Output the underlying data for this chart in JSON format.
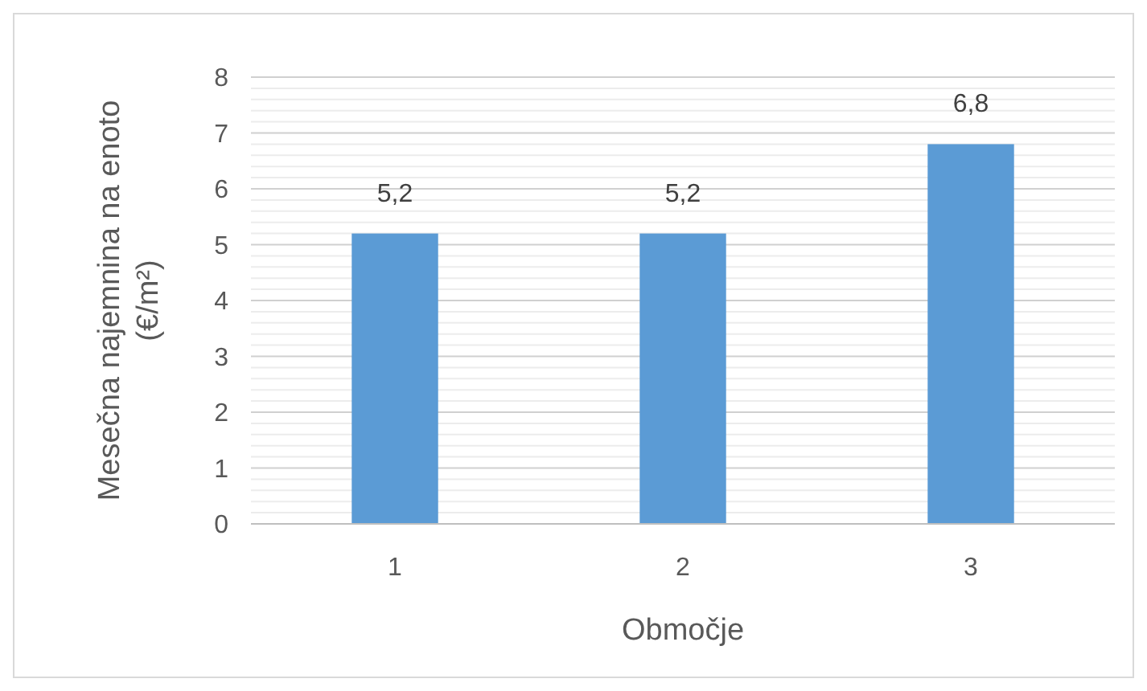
{
  "chart_data": {
    "type": "bar",
    "xlabel": "Območje",
    "ylabel": "Mesečna najemnina na enoto\n(€/m²)",
    "categories": [
      "1",
      "2",
      "3"
    ],
    "values": [
      5.2,
      5.2,
      6.8
    ],
    "value_labels": [
      "5,2",
      "5,2",
      "6,8"
    ],
    "color": "#5b9bd5",
    "ylim": [
      0,
      8
    ],
    "yticks": [
      0,
      {
        "value": 0.2,
        "label": null
      },
      {
        "value": 0.4,
        "label": null
      },
      {
        "value": 0.6,
        "label": null
      },
      {
        "value": 0.8,
        "label": null
      },
      1,
      {
        "value": 1.2,
        "label": null
      },
      {
        "value": 1.4,
        "label": null
      },
      {
        "value": 1.6,
        "label": null
      },
      {
        "value": 1.8,
        "label": null
      },
      2,
      {
        "value": 2.2,
        "label": null
      },
      {
        "value": 2.4,
        "label": null
      },
      {
        "value": 2.6,
        "label": null
      },
      {
        "value": 2.8,
        "label": null
      },
      3,
      {
        "value": 3.2,
        "label": null
      },
      {
        "value": 3.4,
        "label": null
      },
      {
        "value": 3.6,
        "label": null
      },
      {
        "value": 3.8,
        "label": null
      },
      4,
      {
        "value": 4.2,
        "label": null
      },
      {
        "value": 4.4,
        "label": null
      },
      {
        "value": 4.6,
        "label": null
      },
      {
        "value": 4.8,
        "label": null
      },
      5,
      {
        "value": 5.2,
        "label": null
      },
      {
        "value": 5.4,
        "label": null
      },
      {
        "value": 5.6,
        "label": null
      },
      {
        "value": 5.8,
        "label": null
      },
      6,
      {
        "value": 6.2,
        "label": null
      },
      {
        "value": 6.4,
        "label": null
      },
      {
        "value": 6.6,
        "label": null
      },
      {
        "value": 6.8,
        "label": null
      },
      7,
      {
        "value": 7.2,
        "label": null
      },
      {
        "value": 7.4,
        "label": null
      },
      {
        "value": 7.6,
        "label": null
      },
      {
        "value": 7.8,
        "label": null
      },
      8
    ],
    "grid": true
  }
}
